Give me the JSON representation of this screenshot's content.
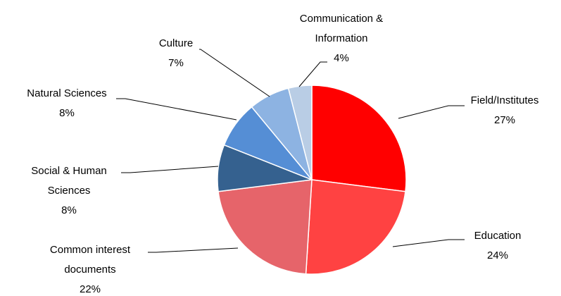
{
  "chart_data": {
    "type": "pie",
    "categories": [
      "Field/Institutes",
      "Education",
      "Common interest documents",
      "Social & Human Sciences",
      "Natural Sciences",
      "Culture",
      "Communication & Information"
    ],
    "values": [
      27,
      24,
      22,
      8,
      8,
      7,
      4
    ],
    "value_labels": [
      "27%",
      "24%",
      "22%",
      "8%",
      "8%",
      "7%",
      "4%"
    ],
    "colors": [
      "#ff0000",
      "#ff4242",
      "#e6646a",
      "#35618f",
      "#558ed5",
      "#8db3e2",
      "#b9cde5"
    ]
  }
}
